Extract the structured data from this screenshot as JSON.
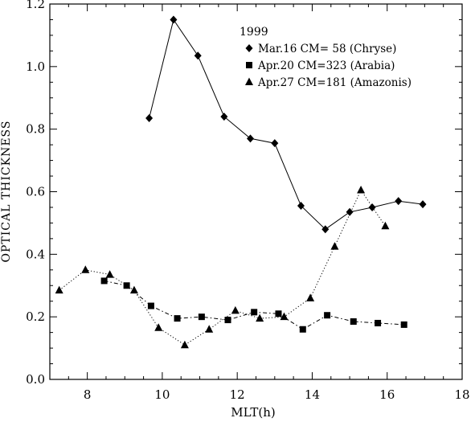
{
  "chart_data": {
    "type": "line",
    "xlabel": "MLT(h)",
    "ylabel": "OPTICAL THICKNESS",
    "xlim": [
      7,
      18
    ],
    "ylim": [
      0.0,
      1.2
    ],
    "x_ticks": [
      8,
      10,
      12,
      14,
      16,
      18
    ],
    "y_ticks": [
      0.0,
      0.2,
      0.4,
      0.6,
      0.8,
      1.0,
      1.2
    ],
    "x_tick_labels": [
      "8",
      "10",
      "12",
      "14",
      "16",
      "18"
    ],
    "y_tick_labels": [
      "0.0",
      "0.2",
      "0.4",
      "0.6",
      "0.8",
      "1.0",
      "1.2"
    ],
    "grid": false,
    "legend": {
      "title": "1999",
      "position": "top-right"
    },
    "series": [
      {
        "name": "Mar.16 CM= 58 (Chryse)",
        "marker": "diamond",
        "line": "solid",
        "x": [
          9.65,
          10.3,
          10.95,
          11.65,
          12.35,
          13.0,
          13.7,
          14.35,
          15.0,
          15.6,
          16.3,
          16.95
        ],
        "y": [
          0.835,
          1.15,
          1.035,
          0.84,
          0.77,
          0.755,
          0.555,
          0.48,
          0.535,
          0.55,
          0.57,
          0.56
        ]
      },
      {
        "name": "Apr.20 CM=323 (Arabia)",
        "marker": "square",
        "line": "dash-dot",
        "x": [
          8.45,
          9.05,
          9.7,
          10.4,
          11.05,
          11.75,
          12.45,
          13.1,
          13.75,
          14.4,
          15.1,
          15.75,
          16.45
        ],
        "y": [
          0.315,
          0.3,
          0.235,
          0.195,
          0.2,
          0.19,
          0.215,
          0.21,
          0.16,
          0.205,
          0.185,
          0.18,
          0.175
        ]
      },
      {
        "name": "Apr.27 CM=181 (Amazonis)",
        "marker": "triangle",
        "line": "dotted",
        "x": [
          7.25,
          7.95,
          8.6,
          9.25,
          9.9,
          10.6,
          11.25,
          11.95,
          12.6,
          13.25,
          13.95,
          14.6,
          15.3,
          15.95
        ],
        "y": [
          0.285,
          0.35,
          0.335,
          0.285,
          0.165,
          0.11,
          0.16,
          0.22,
          0.195,
          0.2,
          0.26,
          0.425,
          0.605,
          0.49
        ]
      }
    ]
  }
}
